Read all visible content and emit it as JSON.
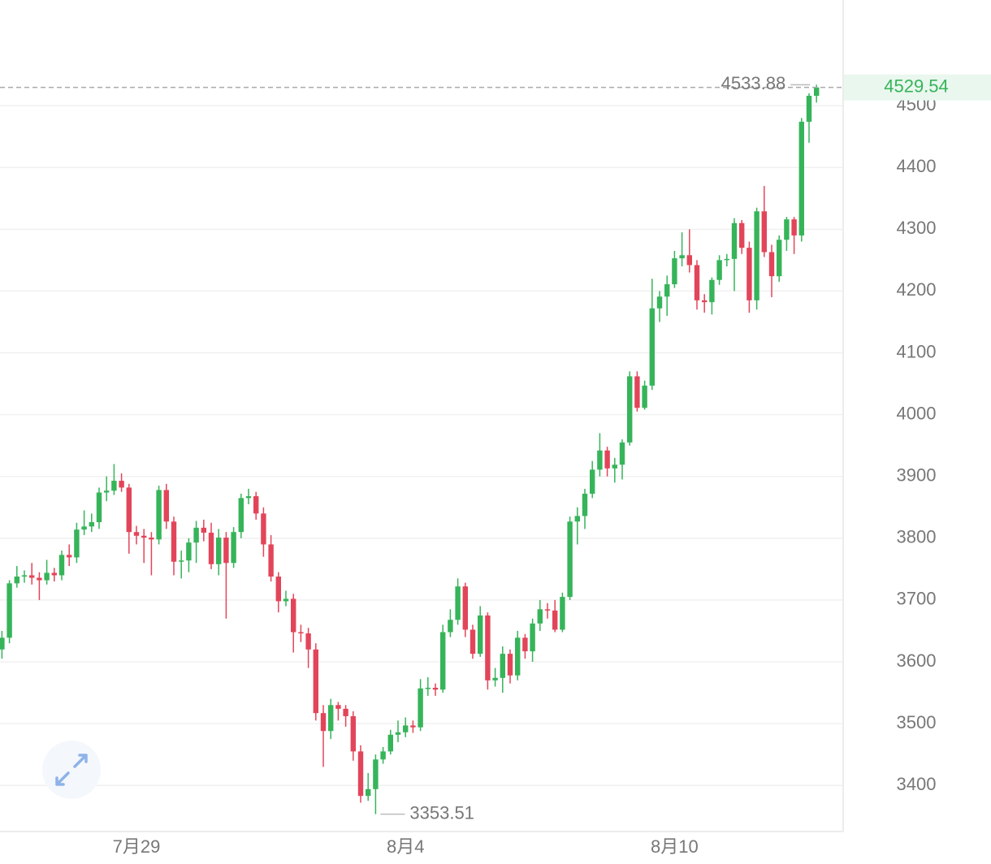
{
  "chart_data": {
    "type": "candlestick",
    "up_color": "#36b45a",
    "down_color": "#e2455a",
    "grid": true,
    "ylim": [
      3328,
      4671
    ],
    "yticks": [
      3400,
      3500,
      3600,
      3700,
      3800,
      3900,
      4000,
      4100,
      4200,
      4300,
      4400,
      4500
    ],
    "categories": [
      null,
      null,
      null,
      null,
      null,
      null,
      null,
      null,
      null,
      null,
      null,
      null,
      null,
      null,
      null,
      null,
      null,
      null,
      "7月29",
      null,
      null,
      null,
      null,
      null,
      null,
      null,
      null,
      null,
      null,
      null,
      null,
      null,
      null,
      null,
      null,
      null,
      null,
      null,
      null,
      null,
      null,
      null,
      null,
      null,
      null,
      null,
      null,
      null,
      null,
      null,
      null,
      null,
      null,
      null,
      "8月4",
      null,
      null,
      null,
      null,
      null,
      null,
      null,
      null,
      null,
      null,
      null,
      null,
      null,
      null,
      null,
      null,
      null,
      null,
      null,
      null,
      null,
      null,
      null,
      null,
      null,
      null,
      null,
      null,
      null,
      null,
      null,
      null,
      null,
      null,
      null,
      "8月10",
      null,
      null,
      null,
      null,
      null,
      null,
      null,
      null,
      null,
      null,
      null,
      null,
      null,
      null,
      null,
      null,
      null,
      null,
      null
    ],
    "open": [
      3620,
      3639,
      3727,
      3738,
      3740,
      3736,
      3732,
      3744,
      3740,
      3773,
      3769,
      3814,
      3819,
      3826,
      3874,
      3877,
      3893,
      3882,
      3810,
      3804,
      3801,
      3798,
      3878,
      3827,
      3762,
      3764,
      3793,
      3817,
      3809,
      3758,
      3801,
      3760,
      3810,
      3865,
      3868,
      3840,
      3790,
      3738,
      3698,
      3702,
      3648,
      3646,
      3620,
      3517,
      3488,
      3530,
      3524,
      3512,
      3455,
      3383,
      3394,
      3442,
      3455,
      3482,
      3486,
      3497,
      3494,
      3557,
      3558,
      3555,
      3648,
      3668,
      3722,
      3652,
      3613,
      3675,
      3570,
      3574,
      3613,
      3578,
      3639,
      3617,
      3662,
      3685,
      3683,
      3652,
      3705,
      3827,
      3836,
      3872,
      3911,
      3942,
      3913,
      3919,
      3955,
      4062,
      4011,
      4047,
      4172,
      4191,
      4211,
      4253,
      4258,
      4242,
      4185,
      4182,
      4218,
      4250,
      4252,
      4310,
      4270,
      4185,
      4329,
      4263,
      4224,
      4283,
      4316,
      4290,
      4474,
      4516
    ],
    "high": [
      3650,
      3732,
      3755,
      3748,
      3760,
      3745,
      3765,
      3752,
      3780,
      3790,
      3825,
      3845,
      3840,
      3882,
      3900,
      3920,
      3905,
      3888,
      3820,
      3815,
      3810,
      3885,
      3888,
      3835,
      3780,
      3800,
      3828,
      3830,
      3825,
      3815,
      3810,
      3818,
      3872,
      3880,
      3875,
      3850,
      3805,
      3745,
      3715,
      3710,
      3660,
      3655,
      3630,
      3530,
      3540,
      3535,
      3530,
      3520,
      3465,
      3420,
      3450,
      3462,
      3490,
      3505,
      3510,
      3505,
      3572,
      3575,
      3565,
      3660,
      3685,
      3735,
      3728,
      3660,
      3690,
      3680,
      3590,
      3625,
      3620,
      3650,
      3645,
      3670,
      3700,
      3695,
      3700,
      3712,
      3835,
      3850,
      3880,
      3925,
      3970,
      3948,
      3930,
      3960,
      4070,
      4070,
      4055,
      4220,
      4200,
      4225,
      4265,
      4295,
      4300,
      4250,
      4195,
      4222,
      4258,
      4260,
      4318,
      4315,
      4280,
      4335,
      4370,
      4275,
      4290,
      4320,
      4320,
      4480,
      4520,
      4533.88
    ],
    "low": [
      3605,
      3630,
      3720,
      3728,
      3725,
      3700,
      3725,
      3730,
      3732,
      3755,
      3760,
      3805,
      3810,
      3815,
      3860,
      3870,
      3875,
      3775,
      3790,
      3760,
      3740,
      3790,
      3815,
      3740,
      3735,
      3745,
      3760,
      3795,
      3750,
      3740,
      3670,
      3752,
      3800,
      3855,
      3830,
      3770,
      3730,
      3680,
      3690,
      3615,
      3632,
      3590,
      3505,
      3430,
      3475,
      3505,
      3495,
      3440,
      3372,
      3375,
      3353.51,
      3435,
      3450,
      3470,
      3478,
      3485,
      3488,
      3545,
      3545,
      3550,
      3640,
      3660,
      3640,
      3605,
      3608,
      3555,
      3560,
      3550,
      3565,
      3570,
      3605,
      3600,
      3650,
      3670,
      3648,
      3648,
      3700,
      3790,
      3815,
      3865,
      3900,
      3900,
      3890,
      3895,
      3950,
      4005,
      4008,
      4040,
      4150,
      4160,
      4205,
      4240,
      4230,
      4170,
      4165,
      4162,
      4210,
      4240,
      4200,
      4260,
      4165,
      4170,
      4255,
      4190,
      4215,
      4265,
      4260,
      4280,
      4440,
      4505
    ],
    "close": [
      3639,
      3727,
      3738,
      3740,
      3736,
      3732,
      3744,
      3740,
      3773,
      3769,
      3814,
      3819,
      3826,
      3874,
      3877,
      3893,
      3882,
      3810,
      3804,
      3801,
      3798,
      3878,
      3827,
      3762,
      3764,
      3793,
      3817,
      3809,
      3758,
      3801,
      3760,
      3810,
      3865,
      3868,
      3840,
      3790,
      3738,
      3698,
      3702,
      3648,
      3646,
      3620,
      3517,
      3488,
      3530,
      3524,
      3512,
      3455,
      3383,
      3394,
      3442,
      3455,
      3482,
      3486,
      3497,
      3494,
      3557,
      3558,
      3555,
      3648,
      3668,
      3722,
      3652,
      3613,
      3675,
      3570,
      3574,
      3613,
      3578,
      3639,
      3617,
      3662,
      3685,
      3683,
      3652,
      3705,
      3827,
      3836,
      3872,
      3911,
      3942,
      3913,
      3919,
      3955,
      4062,
      4011,
      4047,
      4172,
      4191,
      4211,
      4253,
      4258,
      4242,
      4185,
      4182,
      4218,
      4250,
      4252,
      4310,
      4270,
      4185,
      4329,
      4263,
      4224,
      4283,
      4316,
      4290,
      4474,
      4516,
      4529.54
    ]
  }
}
